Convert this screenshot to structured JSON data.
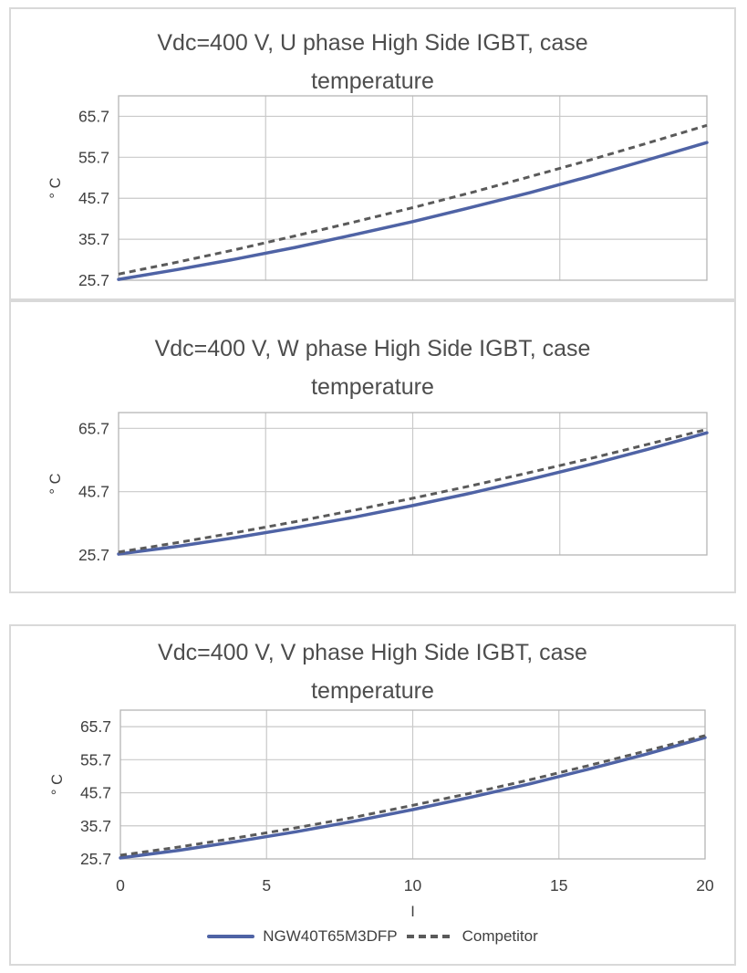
{
  "colors": {
    "series_primary": "#4f63a5",
    "series_competitor": "#5a5a5a",
    "gridline": "#c9c9c9",
    "frame": "#b5b5b5",
    "text": "#404040",
    "title_text": "#4d4d4d",
    "panel_border": "#d9d9d9",
    "background": "#ffffff"
  },
  "chart_data": [
    {
      "type": "line",
      "title": "Vdc=400 V, U phase High Side IGBT, case temperature",
      "title_lines": [
        "Vdc=400 V, U phase High Side IGBT, case",
        "temperature"
      ],
      "xlabel": "I",
      "ylabel": "° C",
      "xlim": [
        0,
        20
      ],
      "ylim": [
        25.7,
        70.7
      ],
      "y_ticks": [
        25.7,
        35.7,
        45.7,
        55.7,
        65.7
      ],
      "x_ticks": [
        0,
        5,
        10,
        15,
        20
      ],
      "x_gridlines": [
        5,
        10,
        15
      ],
      "grid": true,
      "show_x_tick_labels": false,
      "show_xlabel": false,
      "show_legend": false,
      "legend_position": "bottom",
      "x": [
        0,
        2,
        4,
        6,
        8,
        10,
        12,
        14,
        16,
        18,
        20
      ],
      "series": [
        {
          "name": "NGW40T65M3DFP",
          "style": "solid",
          "color_key": "series_primary",
          "values": [
            25.9,
            28.3,
            30.9,
            33.7,
            36.8,
            40.0,
            43.5,
            47.1,
            51.0,
            55.1,
            59.3
          ]
        },
        {
          "name": "Competitor",
          "style": "dashed",
          "color_key": "series_competitor",
          "values": [
            27.2,
            30.1,
            33.2,
            36.5,
            39.9,
            43.4,
            47.1,
            51.0,
            55.0,
            59.2,
            63.5
          ]
        }
      ]
    },
    {
      "type": "line",
      "title": "Vdc=400 V, W phase High Side IGBT, case temperature",
      "title_lines": [
        "Vdc=400 V, W phase High Side IGBT, case",
        "temperature"
      ],
      "xlabel": "I",
      "ylabel": "° C",
      "xlim": [
        0,
        20
      ],
      "ylim": [
        25.7,
        70.7
      ],
      "y_ticks": [
        25.7,
        45.7,
        65.7
      ],
      "x_ticks": [
        0,
        5,
        10,
        15,
        20
      ],
      "x_gridlines": [
        5,
        10,
        15
      ],
      "grid": true,
      "show_x_tick_labels": false,
      "show_xlabel": false,
      "show_legend": false,
      "legend_position": "bottom",
      "x": [
        0,
        2,
        4,
        6,
        8,
        10,
        12,
        14,
        16,
        18,
        20
      ],
      "series": [
        {
          "name": "NGW40T65M3DFP",
          "style": "solid",
          "color_key": "series_primary",
          "values": [
            26.0,
            28.4,
            31.2,
            34.3,
            37.6,
            41.3,
            45.3,
            49.6,
            54.2,
            59.1,
            64.3
          ]
        },
        {
          "name": "Competitor",
          "style": "dashed",
          "color_key": "series_competitor",
          "values": [
            26.6,
            29.6,
            32.8,
            36.2,
            39.8,
            43.6,
            47.6,
            51.8,
            56.1,
            60.7,
            65.4
          ]
        }
      ]
    },
    {
      "type": "line",
      "title": "Vdc=400 V, V phase High Side IGBT, case temperature",
      "title_lines": [
        "Vdc=400 V, V phase High Side IGBT, case",
        "temperature"
      ],
      "xlabel": "I",
      "ylabel": "° C",
      "xlim": [
        0,
        20
      ],
      "ylim": [
        25.7,
        70.7
      ],
      "y_ticks": [
        25.7,
        35.7,
        45.7,
        55.7,
        65.7
      ],
      "x_ticks": [
        0,
        5,
        10,
        15,
        20
      ],
      "x_gridlines": [
        5,
        10,
        15
      ],
      "grid": true,
      "show_x_tick_labels": true,
      "show_xlabel": true,
      "show_legend": true,
      "legend_position": "bottom",
      "x": [
        0,
        2,
        4,
        6,
        8,
        10,
        12,
        14,
        16,
        18,
        20
      ],
      "series": [
        {
          "name": "NGW40T65M3DFP",
          "style": "solid",
          "color_key": "series_primary",
          "values": [
            26.0,
            28.3,
            31.0,
            33.9,
            37.1,
            40.6,
            44.4,
            48.4,
            52.8,
            57.4,
            62.4
          ]
        },
        {
          "name": "Competitor",
          "style": "dashed",
          "color_key": "series_competitor",
          "values": [
            26.8,
            29.3,
            32.1,
            35.1,
            38.3,
            41.9,
            45.6,
            49.6,
            53.9,
            58.4,
            63.0
          ]
        }
      ]
    }
  ]
}
